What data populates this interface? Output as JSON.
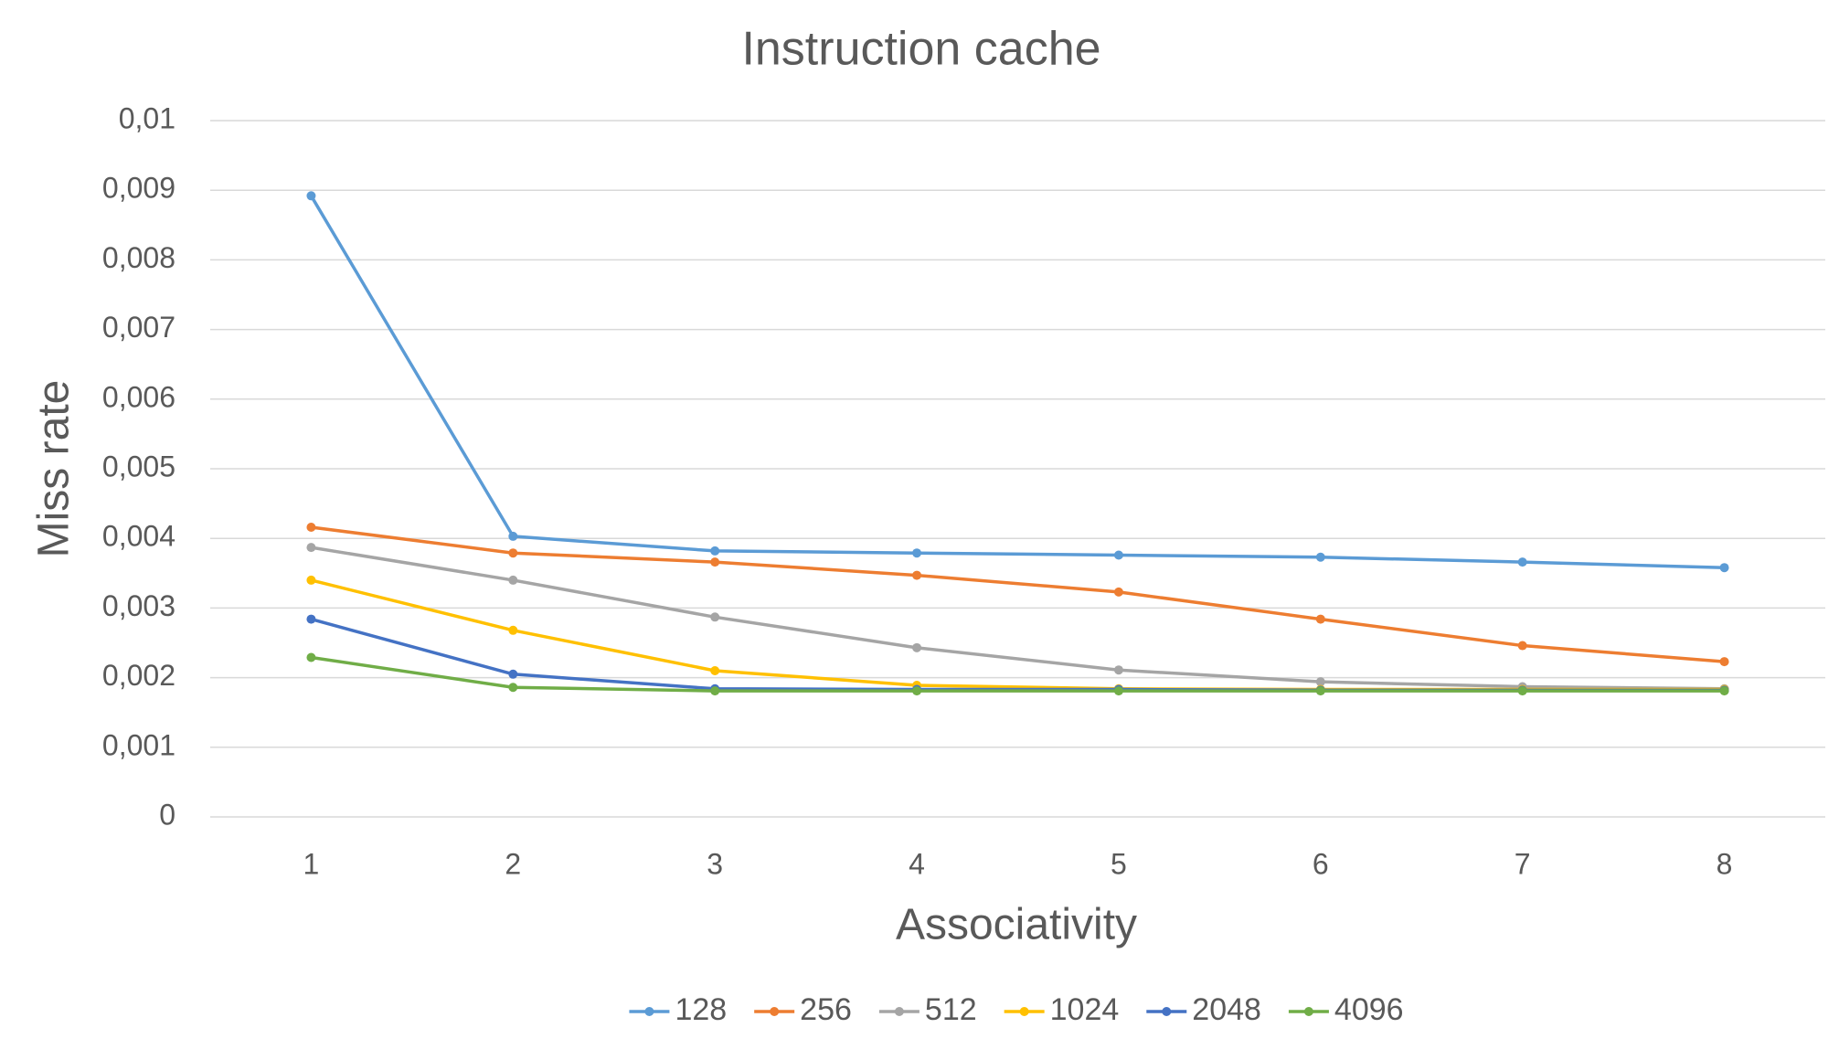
{
  "chart_data": {
    "type": "line",
    "title": "Instruction cache",
    "x_label": "Associativity",
    "y_label": "Miss rate",
    "categories": [
      "1",
      "2",
      "3",
      "4",
      "5",
      "6",
      "7",
      "8"
    ],
    "series": [
      {
        "name": "128",
        "color": "#5b9bd5",
        "values": [
          0.00892,
          0.00403,
          0.00382,
          0.00379,
          0.00376,
          0.00373,
          0.00366,
          0.00358
        ]
      },
      {
        "name": "256",
        "color": "#ed7d31",
        "values": [
          0.00416,
          0.00379,
          0.00366,
          0.00347,
          0.00323,
          0.00284,
          0.00246,
          0.00223
        ]
      },
      {
        "name": "512",
        "color": "#a5a5a5",
        "values": [
          0.00387,
          0.0034,
          0.00287,
          0.00243,
          0.00211,
          0.00194,
          0.00187,
          0.00184
        ]
      },
      {
        "name": "1024",
        "color": "#ffc000",
        "values": [
          0.0034,
          0.00268,
          0.0021,
          0.00189,
          0.00184,
          0.00183,
          0.00183,
          0.00183
        ]
      },
      {
        "name": "2048",
        "color": "#4472c4",
        "values": [
          0.00284,
          0.00205,
          0.00184,
          0.00183,
          0.00183,
          0.00182,
          0.00182,
          0.00182
        ]
      },
      {
        "name": "4096",
        "color": "#70ad47",
        "values": [
          0.00229,
          0.00186,
          0.00181,
          0.00181,
          0.00181,
          0.00181,
          0.00181,
          0.00181
        ]
      }
    ],
    "ylim": [
      0,
      0.01
    ],
    "yticks": [
      0,
      {
        "value": 0.001,
        "label": "0,001"
      },
      {
        "value": 0.002,
        "label": "0,002"
      },
      {
        "value": 0.003,
        "label": "0,003"
      },
      {
        "value": 0.004,
        "label": "0,004"
      },
      {
        "value": 0.005,
        "label": "0,005"
      },
      {
        "value": 0.006,
        "label": "0,006"
      },
      {
        "value": 0.007,
        "label": "0,007"
      },
      {
        "value": 0.008,
        "label": "0,008"
      },
      {
        "value": 0.009,
        "label": "0,009"
      },
      {
        "value": 0.01,
        "label": "0,01"
      }
    ],
    "grid": true,
    "legend": "bottom"
  }
}
